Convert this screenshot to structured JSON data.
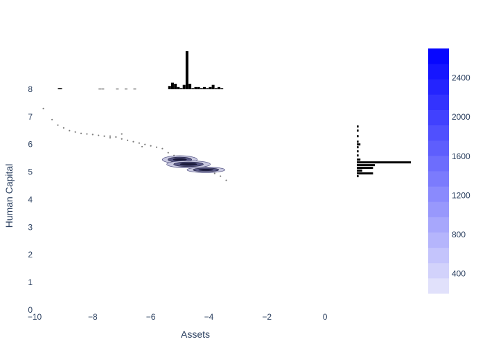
{
  "chart_data": {
    "type": "scatter",
    "xlabel": "Assets",
    "ylabel": "Human Capital",
    "xlim": [
      -10,
      0.5
    ],
    "ylim": [
      0,
      8.3
    ],
    "x_ticks": [
      -10,
      -8,
      -6,
      -4,
      -2,
      0
    ],
    "x_tick_labels": [
      "−10",
      "−8",
      "−6",
      "−4",
      "−2",
      "0"
    ],
    "y_ticks": [
      0,
      1,
      2,
      3,
      4,
      5,
      6,
      7,
      8
    ],
    "y_tick_labels": [
      "0",
      "1",
      "2",
      "3",
      "4",
      "5",
      "6",
      "7",
      "8"
    ],
    "grid": false,
    "scatter_points": [
      [
        -9.7,
        7.3
      ],
      [
        -9.4,
        6.9
      ],
      [
        -9.2,
        6.7
      ],
      [
        -9.0,
        6.6
      ],
      [
        -8.8,
        6.5
      ],
      [
        -8.6,
        6.45
      ],
      [
        -8.4,
        6.4
      ],
      [
        -8.2,
        6.38
      ],
      [
        -8.0,
        6.36
      ],
      [
        -7.8,
        6.33
      ],
      [
        -7.6,
        6.3
      ],
      [
        -7.4,
        6.3
      ],
      [
        -7.2,
        6.27
      ],
      [
        -7.0,
        6.2
      ],
      [
        -6.8,
        6.15
      ],
      [
        -6.6,
        6.1
      ],
      [
        -6.4,
        6.05
      ],
      [
        -6.2,
        6.0
      ],
      [
        -6.0,
        5.95
      ],
      [
        -5.8,
        5.9
      ],
      [
        -5.6,
        5.85
      ],
      [
        -5.4,
        5.7
      ],
      [
        -5.2,
        5.6
      ],
      [
        -5.0,
        5.5
      ],
      [
        -4.8,
        5.4
      ],
      [
        -4.6,
        5.3
      ],
      [
        -4.4,
        5.2
      ],
      [
        -4.2,
        5.1
      ],
      [
        -4.0,
        5.05
      ],
      [
        -3.8,
        4.95
      ],
      [
        -3.6,
        4.85
      ],
      [
        -3.4,
        4.7
      ],
      [
        -7.0,
        6.38
      ],
      [
        -7.4,
        6.24
      ],
      [
        -6.3,
        5.92
      ]
    ],
    "density_contours": [
      {
        "cx": -5.0,
        "cy": 5.45,
        "rx": 0.6,
        "ry": 0.14,
        "level": 2600
      },
      {
        "cx": -4.7,
        "cy": 5.28,
        "rx": 0.75,
        "ry": 0.13,
        "level": 2000
      },
      {
        "cx": -4.1,
        "cy": 5.08,
        "rx": 0.65,
        "ry": 0.1,
        "level": 1400
      }
    ],
    "x_marginal_hist": {
      "bins": [
        -9.2,
        -9.15,
        -7.8,
        -7.7,
        -7.2,
        -6.9,
        -6.6,
        -5.4,
        -5.3,
        -5.2,
        -5.1,
        -5.0,
        -4.9,
        -4.8,
        -4.7,
        -4.6,
        -4.5,
        -4.4,
        -4.3,
        -4.2,
        -4.1,
        -4.0,
        -3.9,
        -3.8,
        -3.7,
        -3.6
      ],
      "counts": [
        1,
        1,
        0.4,
        0.4,
        0.4,
        0.4,
        0.4,
        3,
        6,
        5,
        2,
        1,
        4,
        35,
        5,
        1,
        2,
        2,
        1,
        2,
        1,
        2,
        4,
        1,
        2,
        1
      ]
    },
    "y_marginal_hist": {
      "bins": [
        6.65,
        6.5,
        6.3,
        6.1,
        6.0,
        5.9,
        5.75,
        5.6,
        5.45,
        5.35,
        5.25,
        5.15,
        5.05,
        4.95,
        4.85
      ],
      "counts": [
        1,
        1,
        1,
        1,
        2,
        1,
        1,
        1,
        2,
        30,
        10,
        9,
        3,
        9,
        1
      ]
    },
    "colorbar": {
      "ticks": [
        400,
        800,
        1200,
        1600,
        2000,
        2400
      ],
      "tick_labels": [
        "400",
        "800",
        "1200",
        "1600",
        "2000",
        "2400"
      ],
      "range": [
        200,
        2700
      ],
      "color_low": "#e8e8fb",
      "color_high": "#0000ff"
    },
    "colors": {
      "contour_dark": "#1a1a3a",
      "contour_mid": "#5a5a88",
      "contour_light": "#c8c8e0",
      "points": "#444444",
      "hist": "#000000",
      "text": "#2a3f5f"
    }
  }
}
